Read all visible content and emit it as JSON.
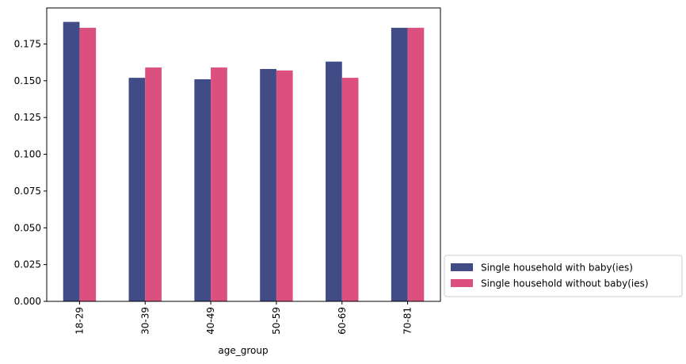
{
  "chart_data": {
    "type": "bar",
    "title": "",
    "xlabel": "age_group",
    "ylabel": "",
    "categories": [
      "18-29",
      "30-39",
      "40-49",
      "50-59",
      "60-69",
      "70-81"
    ],
    "series": [
      {
        "name": "Single household with baby(ies)",
        "color": "#414c87",
        "values": [
          0.19,
          0.152,
          0.151,
          0.158,
          0.163,
          0.186
        ]
      },
      {
        "name": "Single household without baby(ies)",
        "color": "#dc5080",
        "values": [
          0.186,
          0.159,
          0.159,
          0.157,
          0.152,
          0.186
        ]
      }
    ],
    "ylim": [
      0,
      0.1995
    ],
    "yticks": [
      "0.000",
      "0.025",
      "0.050",
      "0.075",
      "0.100",
      "0.125",
      "0.150",
      "0.175"
    ],
    "ytick_values": [
      0,
      0.025,
      0.05,
      0.075,
      0.1,
      0.125,
      0.15,
      0.175
    ],
    "x_tick_rotation": "vertical",
    "grid": false,
    "legend_position": "outside-bottom-right"
  }
}
